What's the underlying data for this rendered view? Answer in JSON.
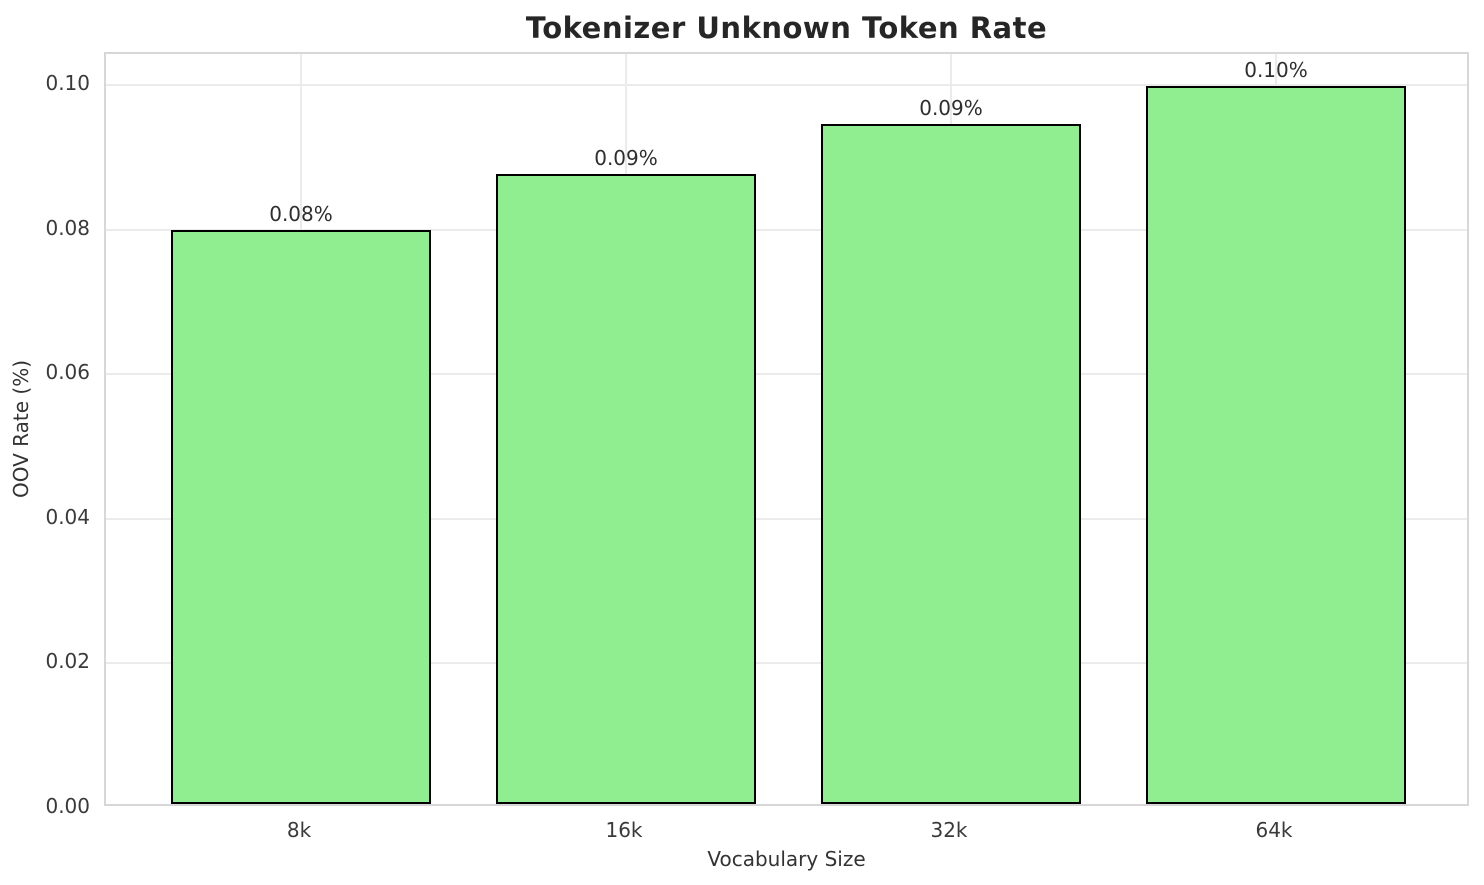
{
  "chart_data": {
    "type": "bar",
    "title": "Tokenizer Unknown Token Rate",
    "xlabel": "Vocabulary Size",
    "ylabel": "OOV Rate (%)",
    "categories": [
      "8k",
      "16k",
      "32k",
      "64k"
    ],
    "values": [
      0.0794,
      0.0871,
      0.094,
      0.0993
    ],
    "bar_labels": [
      "0.08%",
      "0.09%",
      "0.09%",
      "0.10%"
    ],
    "ylim": [
      0,
      0.1043
    ],
    "yticks": [
      0,
      0.02,
      0.04,
      0.06,
      0.08,
      0.1
    ],
    "ytick_labels": [
      "0.00",
      "0.02",
      "0.04",
      "0.06",
      "0.08",
      "0.10"
    ],
    "grid": true,
    "legend": "none",
    "colors": {
      "bar_fill": "#90EE90",
      "bar_edge": "#000000",
      "grid_line": "#ebebeb",
      "spine": "#d7d7d7",
      "title_text": "#262626",
      "tick_text": "#3a3a3a",
      "background": "#ffffff"
    }
  }
}
